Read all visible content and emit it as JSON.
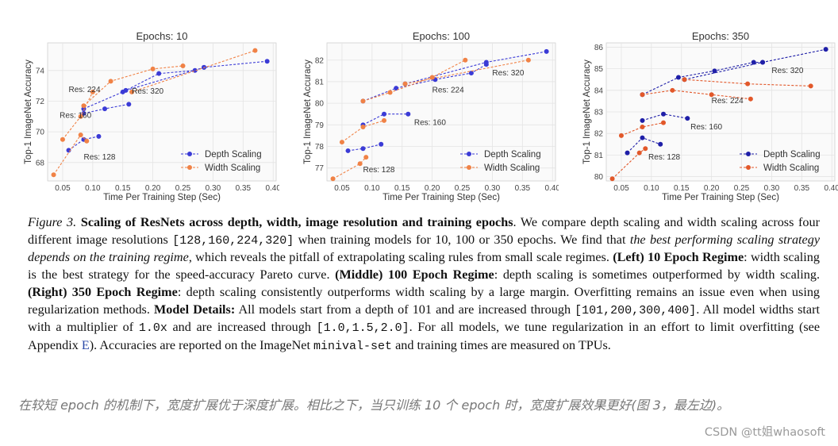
{
  "chart_data": [
    {
      "type": "line",
      "title": "Epochs: 10",
      "xlabel": "Time Per Training Step (Sec)",
      "ylabel": "Top-1 ImageNet Accuracy",
      "xlim": [
        0.025,
        0.405
      ],
      "ylim": [
        66.8,
        75.8
      ],
      "xticks": [
        0.05,
        0.1,
        0.15,
        0.2,
        0.25,
        0.3,
        0.35,
        0.4
      ],
      "xtick_labels": [
        "0.05",
        "0.10",
        "0.15",
        "0.20",
        "0.25",
        "0.30",
        "0.35",
        "0.40"
      ],
      "yticks": [
        68,
        70,
        72,
        74
      ],
      "ytick_labels": [
        "68",
        "70",
        "72",
        "74"
      ],
      "legend_position": "bottom-right",
      "grid": true,
      "series": [
        {
          "name": "Depth Scaling",
          "color": "#3b3bd6",
          "groups": [
            {
              "x": [
                0.06,
                0.085,
                0.11
              ],
              "y": [
                68.8,
                69.5,
                69.7
              ]
            },
            {
              "x": [
                0.085,
                0.12,
                0.16
              ],
              "y": [
                71.2,
                71.5,
                71.8
              ]
            },
            {
              "x": [
                0.085,
                0.15,
                0.21,
                0.27,
                0.285
              ],
              "y": [
                71.5,
                72.6,
                73.8,
                74.0,
                74.2
              ]
            },
            {
              "x": [
                0.155,
                0.285,
                0.39
              ],
              "y": [
                72.7,
                74.2,
                74.6
              ]
            }
          ]
        },
        {
          "name": "Width Scaling",
          "color": "#f08246",
          "groups": [
            {
              "x": [
                0.035,
                0.08,
                0.09
              ],
              "y": [
                67.2,
                69.8,
                69.4
              ]
            },
            {
              "x": [
                0.05,
                0.08,
                0.1
              ],
              "y": [
                69.5,
                71.0,
                72.6
              ]
            },
            {
              "x": [
                0.085,
                0.13,
                0.2,
                0.25
              ],
              "y": [
                71.7,
                73.3,
                74.1,
                74.3
              ]
            },
            {
              "x": [
                0.165,
                0.37
              ],
              "y": [
                72.6,
                75.3
              ]
            }
          ]
        }
      ],
      "annotations": [
        {
          "text": "Res: 128",
          "x": 0.085,
          "y": 68.2
        },
        {
          "text": "Res: 160",
          "x": 0.045,
          "y": 70.9
        },
        {
          "text": "Res: 224",
          "x": 0.06,
          "y": 72.6
        },
        {
          "text": "Res: 320",
          "x": 0.165,
          "y": 72.5
        }
      ]
    },
    {
      "type": "line",
      "title": "Epochs: 100",
      "xlabel": "Time Per Training Step (Sec)",
      "ylabel": "Top-1 ImageNet Accuracy",
      "xlim": [
        0.025,
        0.405
      ],
      "ylim": [
        76.4,
        82.8
      ],
      "xticks": [
        0.05,
        0.1,
        0.15,
        0.2,
        0.25,
        0.3,
        0.35,
        0.4
      ],
      "xtick_labels": [
        "0.05",
        "0.10",
        "0.15",
        "0.20",
        "0.25",
        "0.30",
        "0.35",
        "0.40"
      ],
      "yticks": [
        77,
        78,
        79,
        80,
        81,
        82
      ],
      "ytick_labels": [
        "77",
        "78",
        "79",
        "80",
        "81",
        "82"
      ],
      "legend_position": "bottom-right",
      "grid": true,
      "series": [
        {
          "name": "Depth Scaling",
          "color": "#3b3bd6",
          "groups": [
            {
              "x": [
                0.06,
                0.085,
                0.115
              ],
              "y": [
                77.8,
                77.9,
                78.1
              ]
            },
            {
              "x": [
                0.085,
                0.12,
                0.16
              ],
              "y": [
                79.0,
                79.5,
                79.5
              ]
            },
            {
              "x": [
                0.085,
                0.14,
                0.205,
                0.265,
                0.29
              ],
              "y": [
                80.1,
                80.7,
                81.1,
                81.4,
                81.8
              ]
            },
            {
              "x": [
                0.155,
                0.29,
                0.39
              ],
              "y": [
                80.9,
                81.9,
                82.4
              ]
            }
          ]
        },
        {
          "name": "Width Scaling",
          "color": "#f08246",
          "groups": [
            {
              "x": [
                0.035,
                0.08,
                0.09
              ],
              "y": [
                76.5,
                77.2,
                77.5
              ]
            },
            {
              "x": [
                0.05,
                0.085,
                0.12
              ],
              "y": [
                78.2,
                78.9,
                79.2
              ]
            },
            {
              "x": [
                0.085,
                0.13,
                0.2,
                0.255
              ],
              "y": [
                80.1,
                80.5,
                81.2,
                82.0
              ]
            },
            {
              "x": [
                0.155,
                0.36
              ],
              "y": [
                80.9,
                82.0
              ]
            }
          ]
        }
      ],
      "annotations": [
        {
          "text": "Res: 128",
          "x": 0.085,
          "y": 76.8
        },
        {
          "text": "Res: 160",
          "x": 0.17,
          "y": 79.0
        },
        {
          "text": "Res: 224",
          "x": 0.2,
          "y": 80.5
        },
        {
          "text": "Res: 320",
          "x": 0.3,
          "y": 81.3
        }
      ]
    },
    {
      "type": "line",
      "title": "Epochs: 350",
      "xlabel": "Time Per Training Step (Sec)",
      "ylabel": "Top-1 ImageNet Accuracy",
      "xlim": [
        0.025,
        0.405
      ],
      "ylim": [
        79.8,
        86.2
      ],
      "xticks": [
        0.05,
        0.1,
        0.15,
        0.2,
        0.25,
        0.3,
        0.35,
        0.4
      ],
      "xtick_labels": [
        "0.05",
        "0.10",
        "0.15",
        "0.20",
        "0.25",
        "0.30",
        "0.35",
        "0.40"
      ],
      "yticks": [
        80,
        81,
        82,
        83,
        84,
        85,
        86
      ],
      "ytick_labels": [
        "80",
        "81",
        "82",
        "83",
        "84",
        "85",
        "86"
      ],
      "legend_position": "bottom-right",
      "grid": true,
      "series": [
        {
          "name": "Depth Scaling",
          "color": "#1f1fa8",
          "groups": [
            {
              "x": [
                0.06,
                0.085,
                0.115
              ],
              "y": [
                81.1,
                81.8,
                81.5
              ]
            },
            {
              "x": [
                0.085,
                0.12,
                0.16
              ],
              "y": [
                82.6,
                82.9,
                82.7
              ]
            },
            {
              "x": [
                0.085,
                0.145,
                0.205,
                0.27,
                0.285
              ],
              "y": [
                83.8,
                84.6,
                84.9,
                85.3,
                85.3
              ]
            },
            {
              "x": [
                0.155,
                0.285,
                0.39
              ],
              "y": [
                84.5,
                85.3,
                85.9
              ]
            }
          ]
        },
        {
          "name": "Width Scaling",
          "color": "#e2582a",
          "groups": [
            {
              "x": [
                0.035,
                0.08,
                0.09
              ],
              "y": [
                79.9,
                81.1,
                81.3
              ]
            },
            {
              "x": [
                0.05,
                0.085,
                0.12
              ],
              "y": [
                81.9,
                82.3,
                82.5
              ]
            },
            {
              "x": [
                0.085,
                0.135,
                0.2,
                0.265
              ],
              "y": [
                83.8,
                84.0,
                83.8,
                83.6
              ]
            },
            {
              "x": [
                0.155,
                0.26,
                0.365
              ],
              "y": [
                84.5,
                84.3,
                84.2
              ]
            }
          ]
        }
      ],
      "annotations": [
        {
          "text": "Res: 128",
          "x": 0.095,
          "y": 80.8
        },
        {
          "text": "Res: 160",
          "x": 0.165,
          "y": 82.2
        },
        {
          "text": "Res: 224",
          "x": 0.2,
          "y": 83.4
        },
        {
          "text": "Res: 320",
          "x": 0.3,
          "y": 84.8
        }
      ]
    }
  ],
  "caption": {
    "fig_label": "Figure 3.",
    "title": "Scaling of ResNets across depth, width, image resolution and training epochs",
    "t1": ". We compare depth scaling and width scaling across four different image resolutions ",
    "res_list": "[128,160,224,320]",
    "t2": " when training models for 10, 100 or 350 epochs. We find that ",
    "it1": "the best performing scaling strategy depends on the training regime",
    "t3": ", which reveals the pitfall of extrapolating scaling rules from small scale regimes. ",
    "b_left": "(Left) 10 Epoch Regime",
    "t4": ": width scaling is the best strategy for the speed-accuracy Pareto curve. ",
    "b_mid": "(Middle) 100 Epoch Regime",
    "t5": ": depth scaling is sometimes outperformed by width scaling. ",
    "b_right": "(Right) 350 Epoch Regime",
    "t6": ": depth scaling consistently outperforms width scaling by a large margin. Overfitting remains an issue even when using regularization methods. ",
    "b_details": "Model Details:",
    "t7": " All models start from a depth of 101 and are increased through ",
    "depth_list": "[101,200,300,400]",
    "t8": ". All model widths start with a multiplier of ",
    "width_start": "1.0x",
    "t9": " and are increased through ",
    "width_list": "[1.0,1.5,2.0]",
    "t10": ". For all models, we tune regularization in an effort to limit overfitting (see Appendix ",
    "appendix": "E",
    "t11": "). Accuracies are reported on the ImageNet ",
    "minival": "minival-set",
    "t12": " and training times are measured on TPUs."
  },
  "note_cn": "在较短 epoch 的机制下，宽度扩展优于深度扩展。相比之下，当只训练 10 个 epoch 时，宽度扩展效果更好(图 3，最左边)。",
  "watermark": "CSDN @tt姐whaosoft"
}
